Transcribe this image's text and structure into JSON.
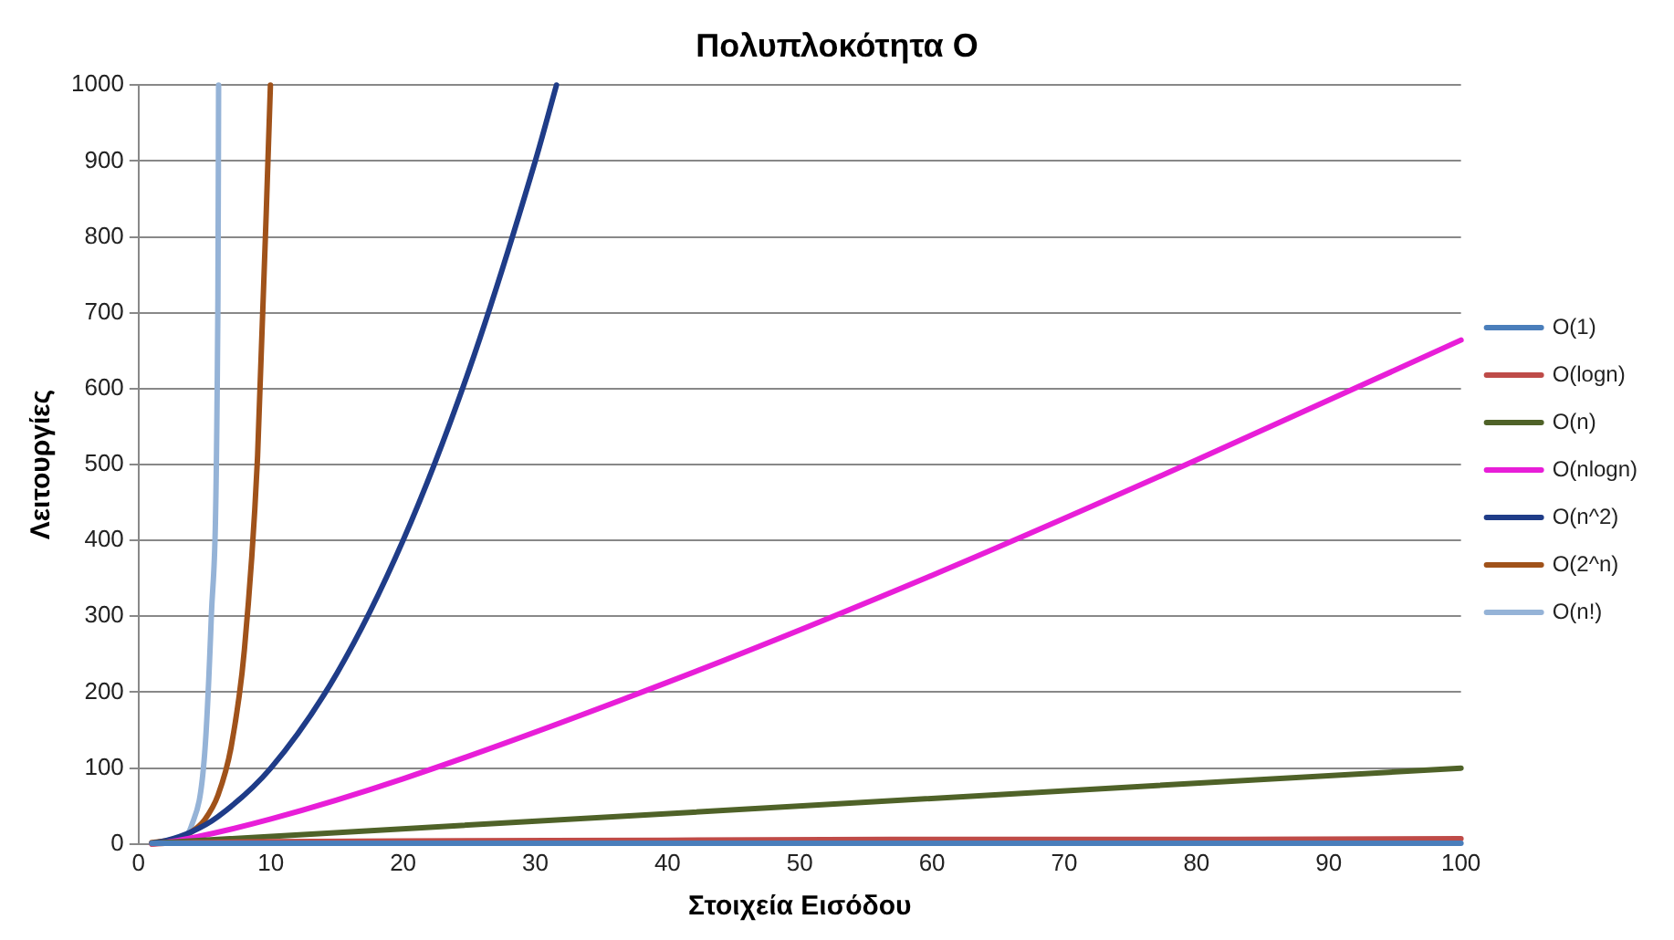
{
  "chart_data": {
    "type": "line",
    "title": "Πολυπλοκότητα Ο",
    "xlabel": "Στοιχεία Εισόδου",
    "ylabel": "Λειτουργίες",
    "xlim": [
      0,
      100
    ],
    "ylim": [
      0,
      1000
    ],
    "xticks": [
      0,
      10,
      20,
      30,
      40,
      50,
      60,
      70,
      80,
      90,
      100
    ],
    "yticks": [
      0,
      100,
      200,
      300,
      400,
      500,
      600,
      700,
      800,
      900,
      1000
    ],
    "grid": "y",
    "legend": "right",
    "marker": "none",
    "line_style": "solid",
    "series": [
      {
        "name": "O(1)",
        "color": "#4a7ebb",
        "x": [
          1,
          100
        ],
        "values": [
          1,
          1
        ]
      },
      {
        "name": "O(logn)",
        "color": "#be4b48",
        "x": [
          1,
          2,
          5,
          10,
          20,
          40,
          60,
          80,
          100
        ],
        "values": [
          0,
          1,
          2,
          3,
          4,
          5,
          6,
          6,
          7
        ]
      },
      {
        "name": "O(n)",
        "color": "#4f6228",
        "x": [
          1,
          100
        ],
        "values": [
          1,
          100
        ]
      },
      {
        "name": "O(nlogn)",
        "color": "#e81ed8",
        "x": [
          1,
          2,
          4,
          10,
          20,
          40,
          60,
          80,
          100
        ],
        "values": [
          0,
          2,
          8,
          33,
          86,
          213,
          354,
          506,
          664
        ]
      },
      {
        "name": "O(n^2)",
        "color": "#1f3c88",
        "x": [
          1,
          2,
          4,
          6,
          10,
          15,
          20,
          25,
          30,
          31.6
        ],
        "values": [
          1,
          4,
          16,
          36,
          100,
          225,
          400,
          625,
          900,
          1000
        ]
      },
      {
        "name": "O(2^n)",
        "color": "#a0521a",
        "x": [
          1,
          2,
          3,
          4,
          5,
          6,
          7,
          8,
          9,
          9.97
        ],
        "values": [
          2,
          4,
          8,
          16,
          32,
          64,
          128,
          256,
          512,
          1000
        ]
      },
      {
        "name": "O(n!)",
        "color": "#95b3d7",
        "x": [
          1,
          2,
          3,
          4,
          5,
          5.5,
          6,
          6.05
        ],
        "values": [
          1,
          2,
          6,
          24,
          120,
          300,
          720,
          1000
        ]
      }
    ]
  }
}
